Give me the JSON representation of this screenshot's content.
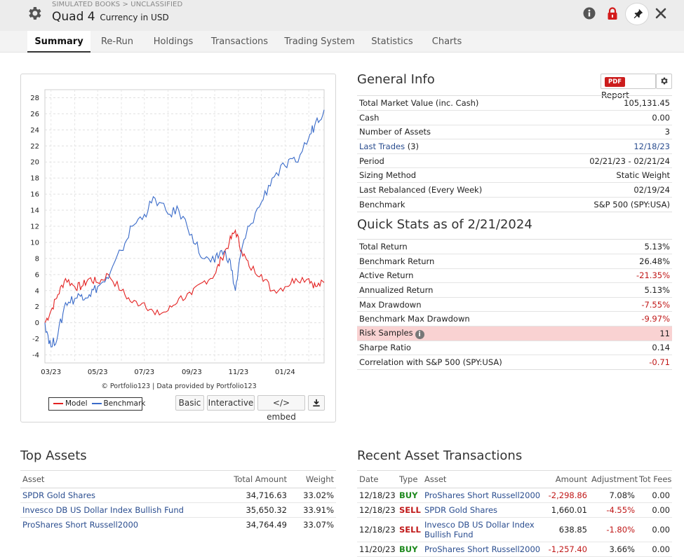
{
  "header": {
    "breadcrumb": "SIMULATED BOOKS > UNCLASSIFIED",
    "title": "Quad 4",
    "subtitle": "Currency in USD",
    "icons": [
      "gear-icon",
      "info-icon",
      "lock-icon",
      "pin-icon",
      "close-icon"
    ]
  },
  "tabs": [
    {
      "label": "Summary",
      "active": true
    },
    {
      "label": "Re-Run"
    },
    {
      "label": "Holdings"
    },
    {
      "label": "Transactions"
    },
    {
      "label": "Trading System"
    },
    {
      "label": "Statistics"
    },
    {
      "label": "Charts"
    }
  ],
  "chart_data": {
    "type": "line",
    "title": "",
    "xlabel": "",
    "ylabel": "",
    "x_ticks": [
      "03/23",
      "05/23",
      "07/23",
      "09/23",
      "11/23",
      "01/24"
    ],
    "y_ticks": [
      -4,
      -2,
      0,
      2,
      4,
      6,
      8,
      10,
      12,
      14,
      16,
      18,
      20,
      22,
      24,
      26,
      28
    ],
    "ylim": [
      -5,
      29
    ],
    "xlim": [
      "2023-02-21",
      "2024-02-21"
    ],
    "grid": true,
    "legend_position": "bottom-left",
    "series": [
      {
        "name": "Model",
        "color": "#e32222",
        "x": [
          "2023-02-21",
          "2023-03-01",
          "2023-03-10",
          "2023-03-20",
          "2023-04-01",
          "2023-04-10",
          "2023-04-20",
          "2023-05-01",
          "2023-05-15",
          "2023-06-01",
          "2023-06-15",
          "2023-07-01",
          "2023-07-15",
          "2023-08-01",
          "2023-08-15",
          "2023-09-01",
          "2023-09-15",
          "2023-10-01",
          "2023-10-10",
          "2023-10-20",
          "2023-10-28",
          "2023-11-05",
          "2023-11-15",
          "2023-12-01",
          "2023-12-15",
          "2024-01-01",
          "2024-01-15",
          "2024-02-01",
          "2024-02-10",
          "2024-02-21"
        ],
        "values": [
          0,
          1.5,
          3.5,
          5.5,
          4.5,
          4.5,
          5.5,
          5,
          6,
          4,
          2.5,
          2.5,
          1,
          1.5,
          3,
          3.5,
          5,
          6,
          8,
          10,
          11.5,
          9,
          7,
          6,
          4,
          4.5,
          5.5,
          5.5,
          4.5,
          5
        ]
      },
      {
        "name": "Benchmark",
        "color": "#3a6bc9",
        "x": [
          "2023-02-21",
          "2023-03-01",
          "2023-03-10",
          "2023-03-20",
          "2023-04-01",
          "2023-04-10",
          "2023-04-20",
          "2023-05-01",
          "2023-05-15",
          "2023-06-01",
          "2023-06-15",
          "2023-07-01",
          "2023-07-15",
          "2023-08-01",
          "2023-08-15",
          "2023-09-01",
          "2023-09-15",
          "2023-10-01",
          "2023-10-10",
          "2023-10-20",
          "2023-10-28",
          "2023-11-05",
          "2023-11-15",
          "2023-12-01",
          "2023-12-15",
          "2024-01-01",
          "2024-01-15",
          "2024-02-01",
          "2024-02-10",
          "2024-02-21"
        ],
        "values": [
          0,
          -3,
          -1.5,
          2.5,
          3,
          3.5,
          3.5,
          4.5,
          5.5,
          9,
          12,
          13.5,
          15.5,
          13.5,
          14,
          11,
          8,
          7.5,
          9,
          8,
          4,
          9,
          12,
          15,
          18,
          19.5,
          20,
          23,
          25,
          26.5
        ]
      }
    ]
  },
  "chart_panel": {
    "copyright": "© Portfolio123 | Data provided by Portfolio123",
    "buttons": {
      "basic": "Basic",
      "interactive": "Interactive",
      "embed": "</> embed"
    }
  },
  "general_info": {
    "heading": "General Info",
    "report_label": "Report",
    "pdf_label": "PDF",
    "rows": [
      {
        "label": "Total Market Value (inc. Cash)",
        "value": "105,131.45"
      },
      {
        "label": "Cash",
        "value": "0.00"
      },
      {
        "label": "Number of Assets",
        "value": "3"
      },
      {
        "label": "Last Trades",
        "suffix": "(3)",
        "value": "12/18/23"
      },
      {
        "label": "Period",
        "value": "02/21/23 - 02/21/24"
      },
      {
        "label": "Sizing Method",
        "value": "Static Weight"
      },
      {
        "label": "Last Rebalanced (Every Week)",
        "value": "02/19/24"
      },
      {
        "label": "Benchmark",
        "value": "S&P 500 (SPY:USA)"
      }
    ]
  },
  "quick_stats": {
    "heading": "Quick Stats as of 2/21/2024",
    "rows": [
      {
        "label": "Total Return",
        "value": "5.13%"
      },
      {
        "label": "Benchmark Return",
        "value": "26.48%"
      },
      {
        "label": "Active Return",
        "value": "-21.35%"
      },
      {
        "label": "Annualized Return",
        "value": "5.13%"
      },
      {
        "label": "Max Drawdown",
        "value": "-7.55%"
      },
      {
        "label": "Benchmark Max Drawdown",
        "value": "-9.97%"
      },
      {
        "label": "Risk Samples",
        "value": "11"
      },
      {
        "label": "Sharpe Ratio",
        "value": "0.14"
      },
      {
        "label": "Correlation with S&P 500 (SPY:USA)",
        "value": "-0.71"
      }
    ]
  },
  "top_assets": {
    "heading": "Top Assets",
    "columns": [
      "Asset",
      "Total Amount",
      "Weight"
    ],
    "rows": [
      {
        "asset": "SPDR Gold Shares",
        "amount": "34,716.63",
        "weight": "33.02%"
      },
      {
        "asset": "Invesco DB US Dollar Index Bullish Fund",
        "amount": "35,650.32",
        "weight": "33.91%"
      },
      {
        "asset": "ProShares Short Russell2000",
        "amount": "34,764.49",
        "weight": "33.07%"
      }
    ]
  },
  "recent_transactions": {
    "heading": "Recent Asset Transactions",
    "columns": [
      "Date",
      "Type",
      "Asset",
      "Amount",
      "Adjustment",
      "Tot Fees"
    ],
    "rows": [
      {
        "date": "12/18/23",
        "type": "BUY",
        "asset": "ProShares Short Russell2000",
        "amount": "-2,298.86",
        "adjustment": "7.08%",
        "fees": "0.00"
      },
      {
        "date": "12/18/23",
        "type": "SELL",
        "asset": "SPDR Gold Shares",
        "amount": "1,660.01",
        "adjustment": "-4.55%",
        "fees": "0.00"
      },
      {
        "date": "12/18/23",
        "type": "SELL",
        "asset": "Invesco DB US Dollar Index Bullish Fund",
        "amount": "638.85",
        "adjustment": "-1.80%",
        "fees": "0.00"
      },
      {
        "date": "11/20/23",
        "type": "BUY",
        "asset": "ProShares Short Russell2000",
        "amount": "-1,257.40",
        "adjustment": "3.66%",
        "fees": "0.00"
      }
    ]
  }
}
